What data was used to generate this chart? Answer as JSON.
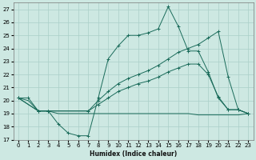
{
  "background_color": "#cde8e2",
  "grid_color": "#aacfc8",
  "line_color": "#1a6b5a",
  "xlabel": "Humidex (Indice chaleur)",
  "xlim": [
    -0.5,
    23.5
  ],
  "ylim": [
    17,
    27.5
  ],
  "yticks": [
    17,
    18,
    19,
    20,
    21,
    22,
    23,
    24,
    25,
    26,
    27
  ],
  "xticks": [
    0,
    1,
    2,
    3,
    4,
    5,
    6,
    7,
    8,
    9,
    10,
    11,
    12,
    13,
    14,
    15,
    16,
    17,
    18,
    19,
    20,
    21,
    22,
    23
  ],
  "series": [
    {
      "x": [
        0,
        1,
        2,
        3,
        4,
        5,
        6,
        7,
        8,
        9,
        10,
        11,
        12,
        13,
        14,
        15,
        16,
        17,
        18,
        19,
        20,
        21,
        22,
        23
      ],
      "y": [
        20.2,
        20.2,
        19.2,
        19.2,
        18.2,
        17.5,
        17.3,
        17.3,
        20.2,
        23.2,
        24.2,
        25.0,
        25.0,
        25.2,
        25.5,
        27.2,
        25.7,
        23.8,
        23.8,
        22.2,
        20.2,
        19.3,
        19.3,
        19.0
      ],
      "marker": true
    },
    {
      "x": [
        0,
        1,
        2,
        3,
        4,
        5,
        6,
        7,
        8,
        9,
        10,
        11,
        12,
        13,
        14,
        15,
        16,
        17,
        18,
        19,
        20,
        21,
        22,
        23
      ],
      "y": [
        20.2,
        20.0,
        19.2,
        19.2,
        19.0,
        19.0,
        19.0,
        19.0,
        19.0,
        19.0,
        19.0,
        19.0,
        19.0,
        19.0,
        19.0,
        19.0,
        19.0,
        19.0,
        18.9,
        18.9,
        18.9,
        18.9,
        18.9,
        19.0
      ],
      "marker": false
    },
    {
      "x": [
        0,
        2,
        3,
        7,
        8,
        9,
        10,
        11,
        12,
        13,
        14,
        15,
        16,
        17,
        18,
        19,
        20,
        21,
        22,
        23
      ],
      "y": [
        20.2,
        19.2,
        19.2,
        19.2,
        20.0,
        20.7,
        21.3,
        21.7,
        22.0,
        22.3,
        22.7,
        23.2,
        23.7,
        24.0,
        24.3,
        24.8,
        25.3,
        21.8,
        19.3,
        19.0
      ],
      "marker": true
    },
    {
      "x": [
        0,
        2,
        3,
        7,
        8,
        9,
        10,
        11,
        12,
        13,
        14,
        15,
        16,
        17,
        18,
        19,
        20,
        21,
        22,
        23
      ],
      "y": [
        20.2,
        19.2,
        19.2,
        19.2,
        19.7,
        20.2,
        20.7,
        21.0,
        21.3,
        21.5,
        21.8,
        22.2,
        22.5,
        22.8,
        22.8,
        22.0,
        20.3,
        19.3,
        19.3,
        19.0
      ],
      "marker": true
    }
  ]
}
